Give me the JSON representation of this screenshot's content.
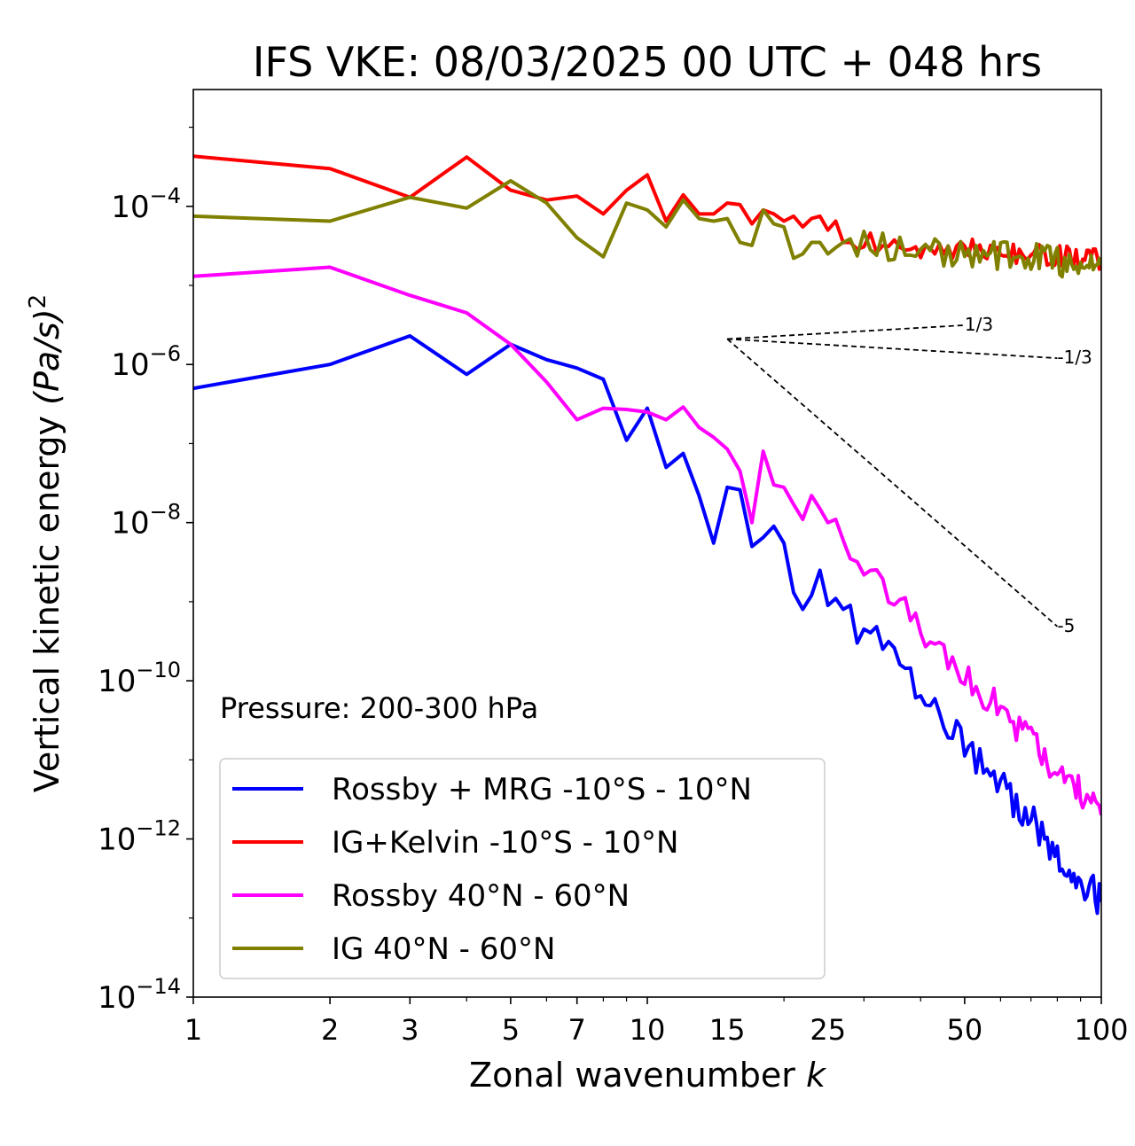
{
  "chart_data": {
    "type": "line",
    "title": "IFS VKE: 08/03/2025 00 UTC + 048 hrs",
    "xlabel": "Zonal wavenumber",
    "xlabel_var": "k",
    "ylabel": "Vertical kinetic energy",
    "ylabel_units": "(Pa/s)",
    "ylabel_exp": "2",
    "xscale": "log",
    "yscale": "log",
    "xlim": [
      1,
      100
    ],
    "ylim": [
      1e-14,
      0.003
    ],
    "xticks": [
      1,
      2,
      3,
      5,
      7,
      10,
      15,
      25,
      50,
      100
    ],
    "xtick_labels": [
      "1",
      "2",
      "3",
      "5",
      "7",
      "10",
      "15",
      "25",
      "50",
      "100"
    ],
    "yticks": [
      {
        "value": 0.0001,
        "base": "10",
        "exp": "−4"
      },
      {
        "value": 1e-06,
        "base": "10",
        "exp": "−6"
      },
      {
        "value": 1e-08,
        "base": "10",
        "exp": "−8"
      },
      {
        "value": 1e-10,
        "base": "10",
        "exp": "−10"
      },
      {
        "value": 1e-12,
        "base": "10",
        "exp": "−12"
      },
      {
        "value": 1e-14,
        "base": "10",
        "exp": "−14"
      }
    ],
    "annotation": "Pressure: 200-300 hPa",
    "legend_position": "lower-left",
    "reference_slopes": [
      {
        "label": "1/3",
        "x0": 15,
        "y0": 2.1e-06,
        "x1": 50,
        "slope": 0.3333
      },
      {
        "label": "-1/3",
        "x0": 15,
        "y0": 2.1e-06,
        "x1": 80,
        "slope": -0.3333
      },
      {
        "label": "-5",
        "x0": 15,
        "y0": 2.1e-06,
        "x1": 80,
        "slope": -5
      }
    ],
    "series": [
      {
        "name": "Rossby + MRG -10°S - 10°N",
        "color": "#0000ff",
        "anchors": [
          [
            1,
            5e-07
          ],
          [
            2,
            1e-06
          ],
          [
            3,
            2.3e-06
          ],
          [
            4,
            7.5e-07
          ],
          [
            5,
            1.8e-06
          ],
          [
            6,
            1.15e-06
          ],
          [
            7,
            9e-07
          ],
          [
            8,
            6.5e-07
          ],
          [
            9,
            1.1e-07
          ],
          [
            10,
            2.8e-07
          ],
          [
            11,
            5e-08
          ],
          [
            12,
            7.5e-08
          ],
          [
            13,
            2.2e-08
          ],
          [
            14,
            5.5e-09
          ],
          [
            15,
            2.8e-08
          ],
          [
            16,
            2.6e-08
          ],
          [
            17,
            5e-09
          ],
          [
            18,
            6.5e-09
          ],
          [
            19,
            9e-09
          ],
          [
            20,
            5.5e-09
          ],
          [
            21,
            1.3e-09
          ],
          [
            22,
            8e-10
          ],
          [
            23,
            1.2e-09
          ],
          [
            24,
            2.5e-09
          ],
          [
            25,
            9e-10
          ],
          [
            26,
            1.1e-09
          ],
          [
            27,
            8e-10
          ],
          [
            28,
            9e-10
          ],
          [
            29,
            3e-10
          ],
          [
            30,
            4.5e-10
          ]
        ],
        "tail": {
          "from": 30,
          "to": 100,
          "y_end": 1.6e-13,
          "noise": 0.22
        }
      },
      {
        "name": "IG+Kelvin -10°S - 10°N",
        "color": "#ff0000",
        "anchors": [
          [
            1,
            0.00043
          ],
          [
            2,
            0.0003
          ],
          [
            3,
            0.00013
          ],
          [
            4,
            0.00042
          ],
          [
            5,
            0.00016
          ],
          [
            6,
            0.00012
          ],
          [
            7,
            0.000135
          ],
          [
            8,
            8e-05
          ],
          [
            9,
            0.00016
          ],
          [
            10,
            0.00025
          ],
          [
            11,
            6.5e-05
          ],
          [
            12,
            0.00014
          ],
          [
            13,
            8e-05
          ],
          [
            14,
            8e-05
          ],
          [
            15,
            0.00011
          ],
          [
            16,
            0.000105
          ],
          [
            17,
            6e-05
          ],
          [
            18,
            9e-05
          ],
          [
            19,
            8e-05
          ],
          [
            20,
            6.5e-05
          ],
          [
            21,
            7.5e-05
          ],
          [
            22,
            5.5e-05
          ],
          [
            23,
            7e-05
          ],
          [
            24,
            7.5e-05
          ],
          [
            25,
            5e-05
          ],
          [
            26,
            6.5e-05
          ],
          [
            27,
            3.5e-05
          ],
          [
            28,
            3.5e-05
          ]
        ],
        "tail": {
          "from": 28,
          "to": 100,
          "y_end": 2.2e-05,
          "noise": 0.14
        }
      },
      {
        "name": "Rossby 40°N - 60°N",
        "color": "#ff00ff",
        "anchors": [
          [
            1,
            1.3e-05
          ],
          [
            2,
            1.7e-05
          ],
          [
            3,
            7.5e-06
          ],
          [
            4,
            4.5e-06
          ],
          [
            5,
            1.8e-06
          ],
          [
            6,
            6e-07
          ],
          [
            7,
            2e-07
          ],
          [
            8,
            2.8e-07
          ],
          [
            9,
            2.7e-07
          ],
          [
            10,
            2.5e-07
          ],
          [
            11,
            2e-07
          ],
          [
            12,
            2.9e-07
          ],
          [
            13,
            1.6e-07
          ],
          [
            14,
            1.2e-07
          ],
          [
            15,
            8.5e-08
          ],
          [
            16,
            4.5e-08
          ],
          [
            17,
            1e-08
          ],
          [
            18,
            8e-08
          ],
          [
            19,
            3e-08
          ],
          [
            20,
            2.8e-08
          ],
          [
            21,
            1.7e-08
          ],
          [
            22,
            1.1e-08
          ],
          [
            23,
            2.2e-08
          ],
          [
            24,
            1.5e-08
          ],
          [
            25,
            1e-08
          ],
          [
            26,
            1.1e-08
          ],
          [
            27,
            6e-09
          ],
          [
            28,
            3.5e-09
          ],
          [
            29,
            3.2e-09
          ]
        ],
        "tail": {
          "from": 29,
          "to": 100,
          "y_end": 2e-12,
          "noise": 0.2
        }
      },
      {
        "name": "IG 40°N - 60°N",
        "color": "#808000",
        "anchors": [
          [
            1,
            7.5e-05
          ],
          [
            2,
            6.5e-05
          ],
          [
            3,
            0.00013
          ],
          [
            4,
            9.5e-05
          ],
          [
            5,
            0.00021
          ],
          [
            6,
            0.00011
          ],
          [
            7,
            4e-05
          ],
          [
            8,
            2.3e-05
          ],
          [
            9,
            0.00011
          ],
          [
            10,
            9e-05
          ],
          [
            11,
            5.5e-05
          ],
          [
            12,
            0.00012
          ],
          [
            13,
            7e-05
          ],
          [
            14,
            6.5e-05
          ],
          [
            15,
            7e-05
          ],
          [
            16,
            3.5e-05
          ],
          [
            17,
            3.2e-05
          ],
          [
            18,
            9e-05
          ],
          [
            19,
            6e-05
          ],
          [
            20,
            5.5e-05
          ],
          [
            21,
            2.2e-05
          ],
          [
            22,
            2.5e-05
          ],
          [
            23,
            3.5e-05
          ],
          [
            24,
            3.5e-05
          ],
          [
            25,
            2.5e-05
          ],
          [
            26,
            3e-05
          ],
          [
            27,
            3.5e-05
          ]
        ],
        "tail": {
          "from": 27,
          "to": 100,
          "y_end": 1.8e-05,
          "noise": 0.2
        }
      }
    ]
  }
}
